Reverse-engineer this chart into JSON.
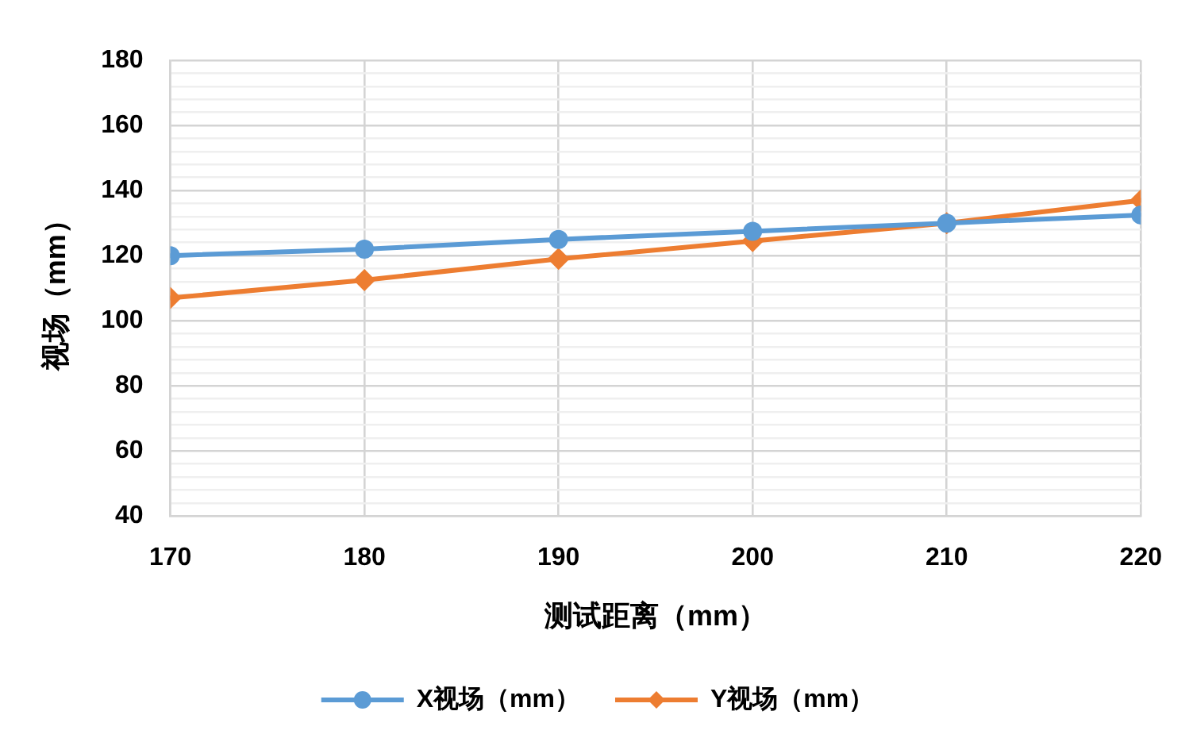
{
  "chart_data": {
    "type": "line",
    "xlabel": "测试距离（mm）",
    "ylabel": "视场（mm）",
    "x": [
      170,
      180,
      190,
      200,
      210,
      220
    ],
    "series": [
      {
        "name": "X视场（mm）",
        "color": "#5b9bd5",
        "marker": "circle",
        "values": [
          120,
          122,
          125,
          127.5,
          130,
          132.5
        ]
      },
      {
        "name": "Y视场（mm）",
        "color": "#ed7d31",
        "marker": "diamond",
        "values": [
          107,
          112.5,
          119,
          124.5,
          130,
          137
        ]
      }
    ],
    "xlim": [
      170,
      220
    ],
    "xticks": [
      170,
      180,
      190,
      200,
      210,
      220
    ],
    "ylim": [
      40,
      180
    ],
    "yticks": [
      40,
      {
        "value": 44,
        "label": null
      },
      {
        "value": 48,
        "label": null
      },
      {
        "value": 52,
        "label": null
      },
      {
        "value": 56,
        "label": null
      },
      60,
      {
        "value": 64,
        "label": null
      },
      {
        "value": 68,
        "label": null
      },
      {
        "value": 72,
        "label": null
      },
      {
        "value": 76,
        "label": null
      },
      80,
      {
        "value": 84,
        "label": null
      },
      {
        "value": 88,
        "label": null
      },
      {
        "value": 92,
        "label": null
      },
      {
        "value": 96,
        "label": null
      },
      100,
      {
        "value": 104,
        "label": null
      },
      {
        "value": 108,
        "label": null
      },
      {
        "value": 112,
        "label": null
      },
      {
        "value": 116,
        "label": null
      },
      120,
      {
        "value": 124,
        "label": null
      },
      {
        "value": 128,
        "label": null
      },
      {
        "value": 132,
        "label": null
      },
      {
        "value": 136,
        "label": null
      },
      140,
      {
        "value": 144,
        "label": null
      },
      {
        "value": 148,
        "label": null
      },
      {
        "value": 152,
        "label": null
      },
      {
        "value": 156,
        "label": null
      },
      160,
      {
        "value": 164,
        "label": null
      },
      {
        "value": 168,
        "label": null
      },
      {
        "value": 172,
        "label": null
      },
      {
        "value": 176,
        "label": null
      },
      180
    ],
    "grid": true,
    "legend": "bottom",
    "line_style": "solid"
  }
}
